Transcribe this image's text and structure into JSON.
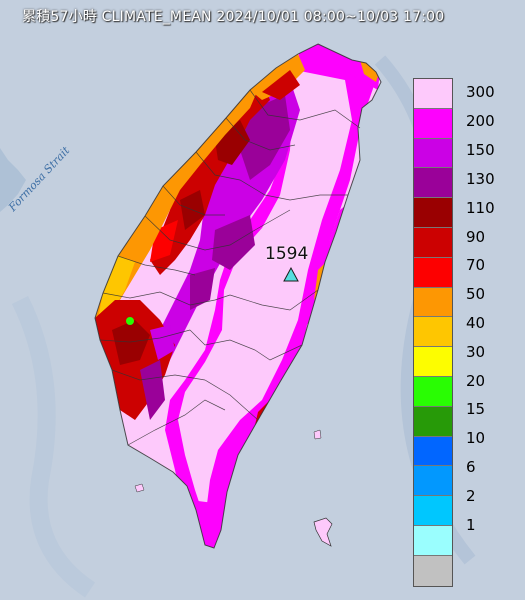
{
  "title": "累積57小時 CLIMATE_MEAN 2024/10/01 08:00~10/03 17:00",
  "strait_label": "Formosa Strait",
  "max_station": {
    "value": "1594",
    "marker": "triangle-marker-icon",
    "marker_color": "#55dde0"
  },
  "legend": {
    "unit_note": "",
    "items": [
      {
        "label": "300",
        "color": "#fdc9fb"
      },
      {
        "label": "200",
        "color": "#fd02fd"
      },
      {
        "label": "150",
        "color": "#cb01e5"
      },
      {
        "label": "130",
        "color": "#9a0199"
      },
      {
        "label": "110",
        "color": "#9a0001"
      },
      {
        "label": "90",
        "color": "#cc0101"
      },
      {
        "label": "70",
        "color": "#fd0000"
      },
      {
        "label": "50",
        "color": "#fd9703"
      },
      {
        "label": "40",
        "color": "#fec601"
      },
      {
        "label": "30",
        "color": "#fdfd00"
      },
      {
        "label": "20",
        "color": "#29fd03"
      },
      {
        "label": "15",
        "color": "#279a08"
      },
      {
        "label": "10",
        "color": "#0166ff"
      },
      {
        "label": "6",
        "color": "#0298fe"
      },
      {
        "label": "2",
        "color": "#00c7fe"
      },
      {
        "label": "1",
        "color": "#9afefe"
      },
      {
        "label": "",
        "color": "#c1c1c1"
      }
    ]
  },
  "colors": {
    "sea": "#c3cfde",
    "island_base": "#fdc9fb",
    "county_border": "#333333"
  }
}
